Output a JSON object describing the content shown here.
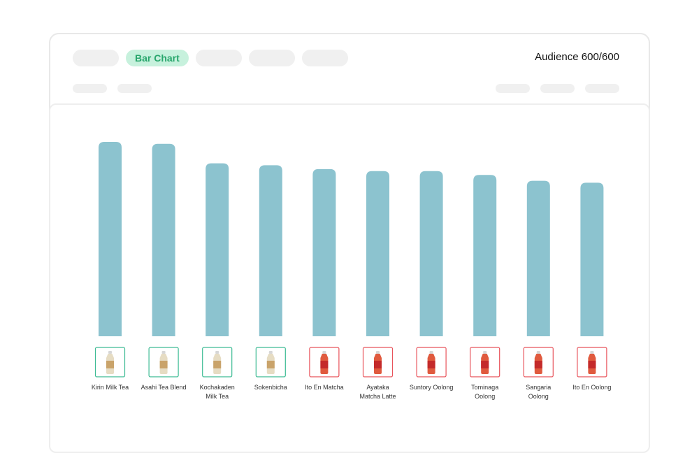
{
  "toolbar": {
    "tabs": [
      {
        "label": ""
      },
      {
        "label": "Bar Chart",
        "active": true
      },
      {
        "label": ""
      },
      {
        "label": ""
      },
      {
        "label": ""
      }
    ],
    "active_tab_label": "Bar Chart",
    "audience_label": "Audience 600/600"
  },
  "colors": {
    "bar": "#8cc3cf",
    "positive_outline": "#3dbb94",
    "negative_outline": "#e8535b",
    "active_tab_bg": "#c7f1dd",
    "active_tab_text": "#28a66c"
  },
  "chart_data": {
    "type": "bar",
    "title": "",
    "xlabel": "",
    "ylabel": "",
    "ylim": [
      0,
      100
    ],
    "grid": false,
    "categories": [
      {
        "label": "Kirin Milk Tea",
        "lines": [
          "Kirin Milk Tea"
        ],
        "group": "positive",
        "icon": "bottle-icon"
      },
      {
        "label": "Asahi Tea Blend",
        "lines": [
          "Asahi Tea Blend"
        ],
        "group": "positive",
        "icon": "bottle-icon"
      },
      {
        "label": "Kochakaden Milk Tea",
        "lines": [
          "Kochakaden",
          "Milk Tea"
        ],
        "group": "positive",
        "icon": "bottle-icon"
      },
      {
        "label": "Sokenbicha",
        "lines": [
          "Sokenbicha"
        ],
        "group": "positive",
        "icon": "bottle-icon"
      },
      {
        "label": "Ito En Matcha",
        "lines": [
          "Ito En Matcha"
        ],
        "group": "negative",
        "icon": "bottle-icon"
      },
      {
        "label": "Ayataka Matcha Latte",
        "lines": [
          "Ayataka",
          "Matcha Latte"
        ],
        "group": "negative",
        "icon": "bottle-icon"
      },
      {
        "label": "Suntory Oolong",
        "lines": [
          "Suntory Oolong"
        ],
        "group": "negative",
        "icon": "bottle-icon"
      },
      {
        "label": "Tominaga Oolong",
        "lines": [
          "Tominaga",
          "Oolong"
        ],
        "group": "negative",
        "icon": "bottle-icon"
      },
      {
        "label": "Sangaria Oolong",
        "lines": [
          "Sangaria",
          "Oolong"
        ],
        "group": "negative",
        "icon": "bottle-icon"
      },
      {
        "label": "Ito En Oolong",
        "lines": [
          "Ito En Oolong"
        ],
        "group": "negative",
        "icon": "bottle-icon"
      }
    ],
    "values": [
      100,
      99,
      89,
      88,
      86,
      85,
      85,
      83,
      80,
      79
    ]
  }
}
